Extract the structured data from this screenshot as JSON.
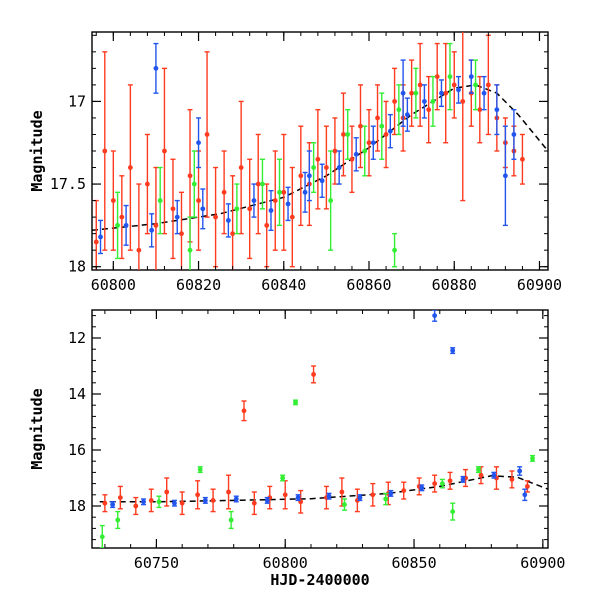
{
  "chart_data": [
    {
      "type": "scatter",
      "xlim": [
        60795,
        60902
      ],
      "ylim": [
        18.02,
        16.58
      ],
      "y_inverted": true,
      "ylabel": "Magnitude",
      "xticks": [
        60800,
        60820,
        60840,
        60860,
        60880,
        60900
      ],
      "yticks": [
        17,
        17.5,
        18
      ],
      "yticklabels": [
        "17",
        "17.5",
        "18"
      ],
      "grid": false,
      "model_curve": {
        "color": "#000000",
        "style": "dashed",
        "x": [
          60795,
          60810,
          60825,
          60840,
          60850,
          60860,
          60870,
          60880,
          60885,
          60890,
          60895,
          60902
        ],
        "y": [
          17.78,
          17.74,
          17.68,
          17.58,
          17.45,
          17.28,
          17.08,
          16.92,
          16.9,
          16.95,
          17.08,
          17.3
        ]
      },
      "series": [
        {
          "color": "#ff3b1f",
          "points": [
            [
              60796,
              17.85,
              0.25
            ],
            [
              60798,
              17.3,
              0.6
            ],
            [
              60800,
              17.6,
              0.3
            ],
            [
              60802,
              17.7,
              0.25
            ],
            [
              60804,
              17.4,
              0.5
            ],
            [
              60806,
              17.9,
              0.4
            ],
            [
              60808,
              17.5,
              0.3
            ],
            [
              60810,
              17.75,
              0.35
            ],
            [
              60812,
              17.3,
              0.5
            ],
            [
              60814,
              17.65,
              0.3
            ],
            [
              60816,
              17.8,
              0.25
            ],
            [
              60818,
              17.45,
              0.4
            ],
            [
              60820,
              17.6,
              0.3
            ],
            [
              60822,
              17.2,
              0.5
            ],
            [
              60824,
              17.7,
              0.3
            ],
            [
              60826,
              17.55,
              0.25
            ],
            [
              60828,
              17.8,
              0.35
            ],
            [
              60830,
              17.4,
              0.4
            ],
            [
              60832,
              17.65,
              0.3
            ],
            [
              60834,
              17.5,
              0.3
            ],
            [
              60836,
              17.75,
              0.25
            ],
            [
              60838,
              17.6,
              0.3
            ],
            [
              60840,
              17.55,
              0.35
            ],
            [
              60842,
              17.7,
              0.3
            ],
            [
              60844,
              17.45,
              0.3
            ],
            [
              60846,
              17.5,
              0.25
            ],
            [
              60848,
              17.35,
              0.3
            ],
            [
              60850,
              17.4,
              0.25
            ],
            [
              60852,
              17.3,
              0.2
            ],
            [
              60854,
              17.2,
              0.25
            ],
            [
              60856,
              17.35,
              0.2
            ],
            [
              60858,
              17.15,
              0.25
            ],
            [
              60860,
              17.25,
              0.2
            ],
            [
              60862,
              17.1,
              0.2
            ],
            [
              60864,
              17.2,
              0.2
            ],
            [
              60866,
              17.0,
              0.2
            ],
            [
              60868,
              17.1,
              0.2
            ],
            [
              60870,
              16.95,
              0.2
            ],
            [
              60872,
              16.9,
              0.25
            ],
            [
              60874,
              17.05,
              0.2
            ],
            [
              60876,
              16.85,
              0.2
            ],
            [
              60878,
              16.95,
              0.3
            ],
            [
              60880,
              16.9,
              0.2
            ],
            [
              60882,
              17.0,
              0.6
            ],
            [
              60884,
              16.95,
              0.2
            ],
            [
              60886,
              17.05,
              0.2
            ],
            [
              60888,
              16.9,
              0.3
            ],
            [
              60890,
              17.1,
              0.2
            ],
            [
              60892,
              17.25,
              0.15
            ],
            [
              60894,
              17.3,
              0.15
            ],
            [
              60896,
              17.35,
              0.15
            ]
          ]
        },
        {
          "color": "#2255ee",
          "points": [
            [
              60797,
              17.82,
              0.1
            ],
            [
              60803,
              17.75,
              0.12
            ],
            [
              60809,
              17.78,
              0.1
            ],
            [
              60815,
              17.7,
              0.1
            ],
            [
              60821,
              17.65,
              0.12
            ],
            [
              60827,
              17.72,
              0.1
            ],
            [
              60833,
              17.6,
              0.1
            ],
            [
              60837,
              17.66,
              0.12
            ],
            [
              60841,
              17.62,
              0.1
            ],
            [
              60845,
              17.55,
              0.12
            ],
            [
              60849,
              17.48,
              0.1
            ],
            [
              60853,
              17.4,
              0.1
            ],
            [
              60857,
              17.32,
              0.1
            ],
            [
              60861,
              17.25,
              0.1
            ],
            [
              60865,
              17.18,
              0.1
            ],
            [
              60869,
              17.08,
              0.1
            ],
            [
              60873,
              17.0,
              0.1
            ],
            [
              60877,
              16.95,
              0.08
            ],
            [
              60881,
              16.93,
              0.08
            ],
            [
              60884,
              16.85,
              0.1
            ],
            [
              60887,
              16.95,
              0.1
            ],
            [
              60890,
              17.05,
              0.15
            ],
            [
              60892,
              17.45,
              0.3
            ],
            [
              60894,
              17.2,
              0.15
            ],
            [
              60810,
              16.8,
              0.15
            ],
            [
              60820,
              17.25,
              0.15
            ],
            [
              60846,
              17.45,
              0.15
            ],
            [
              60868,
              16.95,
              0.2
            ]
          ]
        },
        {
          "color": "#33ee33",
          "points": [
            [
              60801,
              17.75,
              0.2
            ],
            [
              60811,
              17.6,
              0.2
            ],
            [
              60819,
              17.5,
              0.2
            ],
            [
              60829,
              17.65,
              0.15
            ],
            [
              60839,
              17.55,
              0.2
            ],
            [
              60847,
              17.4,
              0.15
            ],
            [
              60851,
              17.6,
              0.3
            ],
            [
              60859,
              17.3,
              0.15
            ],
            [
              60863,
              17.15,
              0.2
            ],
            [
              60867,
              17.05,
              0.15
            ],
            [
              60871,
              16.95,
              0.15
            ],
            [
              60875,
              17.0,
              0.15
            ],
            [
              60879,
              16.85,
              0.2
            ],
            [
              60885,
              16.9,
              0.15
            ],
            [
              60855,
              17.2,
              0.15
            ],
            [
              60835,
              17.5,
              0.15
            ],
            [
              60866,
              17.9,
              0.1
            ],
            [
              60818,
              17.9,
              0.2
            ]
          ]
        }
      ]
    },
    {
      "type": "scatter",
      "xlim": [
        60725,
        60902
      ],
      "ylim": [
        19.5,
        11.0
      ],
      "y_inverted": true,
      "xlabel": "HJD-2400000",
      "ylabel": "Magnitude",
      "xticks": [
        60750,
        60800,
        60850,
        60900
      ],
      "yticks": [
        12,
        14,
        16,
        18
      ],
      "grid": false,
      "model_curve": {
        "color": "#000000",
        "style": "dashed",
        "x": [
          60728,
          60750,
          60780,
          60810,
          60840,
          60860,
          60880,
          60890,
          60902
        ],
        "y": [
          17.85,
          17.85,
          17.8,
          17.74,
          17.55,
          17.3,
          16.92,
          16.97,
          17.4
        ]
      },
      "series": [
        {
          "color": "#ff3b1f",
          "points": [
            [
              60730,
              17.9,
              0.3
            ],
            [
              60736,
              17.7,
              0.4
            ],
            [
              60742,
              18.0,
              0.3
            ],
            [
              60748,
              17.8,
              0.4
            ],
            [
              60754,
              17.5,
              0.5
            ],
            [
              60760,
              17.9,
              0.4
            ],
            [
              60766,
              17.6,
              0.5
            ],
            [
              60772,
              17.8,
              0.4
            ],
            [
              60778,
              17.5,
              0.6
            ],
            [
              60784,
              14.6,
              0.35
            ],
            [
              60788,
              17.9,
              0.4
            ],
            [
              60794,
              17.7,
              0.4
            ],
            [
              60800,
              17.6,
              0.5
            ],
            [
              60806,
              17.85,
              0.4
            ],
            [
              60811,
              13.3,
              0.3
            ],
            [
              60816,
              17.7,
              0.4
            ],
            [
              60822,
              17.5,
              0.5
            ],
            [
              60828,
              17.8,
              0.4
            ],
            [
              60834,
              17.6,
              0.4
            ],
            [
              60840,
              17.55,
              0.4
            ],
            [
              60846,
              17.45,
              0.3
            ],
            [
              60852,
              17.3,
              0.3
            ],
            [
              60858,
              17.2,
              0.3
            ],
            [
              60864,
              17.1,
              0.3
            ],
            [
              60870,
              17.0,
              0.3
            ],
            [
              60876,
              16.9,
              0.3
            ],
            [
              60882,
              17.0,
              0.4
            ],
            [
              60888,
              17.05,
              0.3
            ],
            [
              60894,
              17.3,
              0.2
            ]
          ]
        },
        {
          "color": "#2255ee",
          "points": [
            [
              60858,
              11.2,
              0.2
            ],
            [
              60865,
              12.45,
              0.1
            ],
            [
              60733,
              17.95,
              0.1
            ],
            [
              60745,
              17.85,
              0.1
            ],
            [
              60757,
              17.9,
              0.1
            ],
            [
              60769,
              17.8,
              0.1
            ],
            [
              60781,
              17.75,
              0.1
            ],
            [
              60793,
              17.8,
              0.1
            ],
            [
              60805,
              17.7,
              0.1
            ],
            [
              60817,
              17.65,
              0.1
            ],
            [
              60829,
              17.7,
              0.1
            ],
            [
              60841,
              17.55,
              0.1
            ],
            [
              60853,
              17.35,
              0.1
            ],
            [
              60869,
              17.05,
              0.1
            ],
            [
              60881,
              16.9,
              0.1
            ],
            [
              60891,
              16.75,
              0.15
            ],
            [
              60893,
              17.6,
              0.2
            ]
          ]
        },
        {
          "color": "#33ee33",
          "points": [
            [
              60804,
              14.3,
              0.08
            ],
            [
              60729,
              19.1,
              0.4
            ],
            [
              60735,
              18.5,
              0.3
            ],
            [
              60767,
              16.7,
              0.1
            ],
            [
              60779,
              18.5,
              0.3
            ],
            [
              60799,
              17.0,
              0.1
            ],
            [
              60823,
              17.95,
              0.2
            ],
            [
              60865,
              18.2,
              0.3
            ],
            [
              60875,
              16.7,
              0.1
            ],
            [
              60896,
              16.3,
              0.1
            ],
            [
              60751,
              17.85,
              0.2
            ],
            [
              60839,
              17.75,
              0.2
            ],
            [
              60861,
              17.2,
              0.15
            ]
          ]
        }
      ]
    }
  ]
}
